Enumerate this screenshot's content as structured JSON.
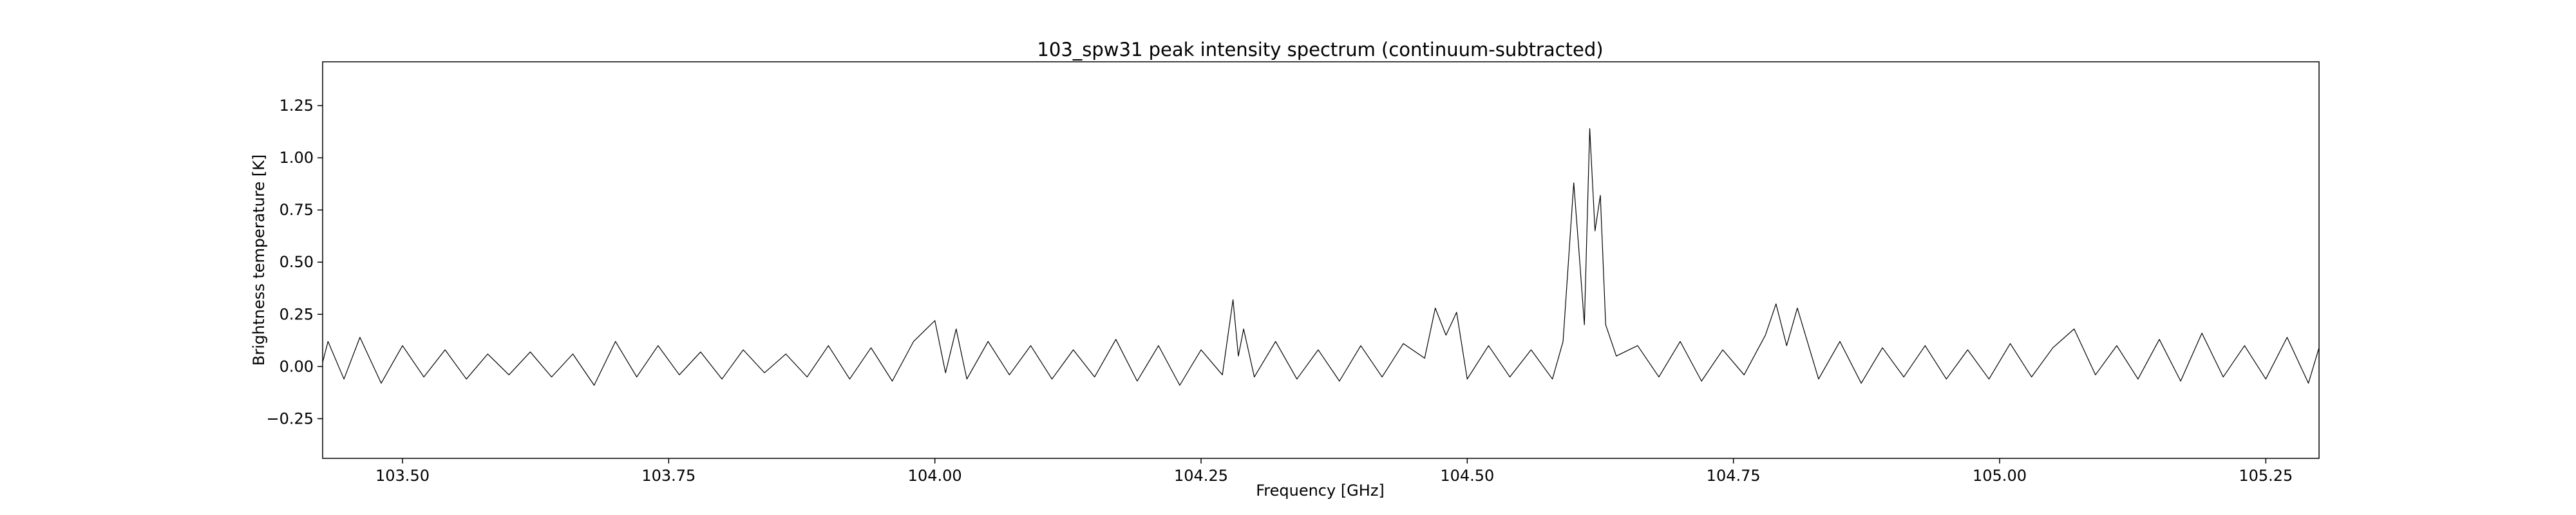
{
  "chart_data": {
    "type": "line",
    "title": "103_spw31 peak intensity spectrum (continuum-subtracted)",
    "xlabel": "Frequency [GHz]",
    "ylabel": "Brightness temperature [K]",
    "xlim": [
      103.425,
      105.3
    ],
    "ylim": [
      -0.44,
      1.46
    ],
    "x_ticks": [
      103.5,
      103.75,
      104.0,
      104.25,
      104.5,
      104.75,
      105.0,
      105.25
    ],
    "x_tick_labels": [
      "103.50",
      "103.75",
      "104.00",
      "104.25",
      "104.50",
      "104.75",
      "105.00",
      "105.25"
    ],
    "y_ticks": [
      -0.25,
      0.0,
      0.25,
      0.5,
      0.75,
      1.0,
      1.25
    ],
    "y_tick_labels": [
      "−0.25",
      "0.00",
      "0.25",
      "0.50",
      "0.75",
      "1.00",
      "1.25"
    ],
    "grid": false,
    "line_color": "#000000",
    "series": [
      {
        "x": [
          103.425,
          103.43,
          103.445,
          103.46,
          103.48,
          103.5,
          103.52,
          103.54,
          103.56,
          103.58,
          103.6,
          103.62,
          103.64,
          103.66,
          103.68,
          103.7,
          103.72,
          103.74,
          103.76,
          103.78,
          103.8,
          103.82,
          103.84,
          103.86,
          103.88,
          103.9,
          103.92,
          103.94,
          103.96,
          103.98,
          104.0,
          104.01,
          104.02,
          104.03,
          104.05,
          104.07,
          104.09,
          104.11,
          104.13,
          104.15,
          104.17,
          104.19,
          104.21,
          104.23,
          104.25,
          104.27,
          104.28,
          104.285,
          104.29,
          104.3,
          104.32,
          104.34,
          104.36,
          104.38,
          104.4,
          104.42,
          104.44,
          104.46,
          104.47,
          104.48,
          104.49,
          104.5,
          104.52,
          104.54,
          104.56,
          104.58,
          104.59,
          104.6,
          104.605,
          104.61,
          104.615,
          104.62,
          104.625,
          104.63,
          104.64,
          104.66,
          104.68,
          104.7,
          104.72,
          104.74,
          104.76,
          104.78,
          104.79,
          104.8,
          104.81,
          104.83,
          104.85,
          104.87,
          104.89,
          104.91,
          104.93,
          104.95,
          104.97,
          104.99,
          105.01,
          105.03,
          105.05,
          105.07,
          105.09,
          105.11,
          105.13,
          105.15,
          105.17,
          105.19,
          105.21,
          105.23,
          105.25,
          105.27,
          105.29,
          105.3
        ],
        "y": [
          0.02,
          0.12,
          -0.06,
          0.14,
          -0.08,
          0.1,
          -0.05,
          0.08,
          -0.06,
          0.06,
          -0.04,
          0.07,
          -0.05,
          0.06,
          -0.09,
          0.12,
          -0.05,
          0.1,
          -0.04,
          0.07,
          -0.06,
          0.08,
          -0.03,
          0.06,
          -0.05,
          0.1,
          -0.06,
          0.09,
          -0.07,
          0.12,
          0.22,
          -0.03,
          0.18,
          -0.06,
          0.12,
          -0.04,
          0.1,
          -0.06,
          0.08,
          -0.05,
          0.13,
          -0.07,
          0.1,
          -0.09,
          0.08,
          -0.04,
          0.32,
          0.05,
          0.18,
          -0.05,
          0.12,
          -0.06,
          0.08,
          -0.07,
          0.1,
          -0.05,
          0.11,
          0.04,
          0.28,
          0.15,
          0.26,
          -0.06,
          0.1,
          -0.05,
          0.08,
          -0.06,
          0.12,
          0.88,
          0.55,
          0.2,
          1.14,
          0.65,
          0.82,
          0.2,
          0.05,
          0.1,
          -0.05,
          0.12,
          -0.07,
          0.08,
          -0.04,
          0.15,
          0.3,
          0.1,
          0.28,
          -0.06,
          0.12,
          -0.08,
          0.09,
          -0.05,
          0.1,
          -0.06,
          0.08,
          -0.06,
          0.11,
          -0.05,
          0.09,
          0.18,
          -0.04,
          0.1,
          -0.06,
          0.13,
          -0.07,
          0.16,
          -0.05,
          0.1,
          -0.06,
          0.14,
          -0.08,
          0.09
        ]
      }
    ]
  }
}
